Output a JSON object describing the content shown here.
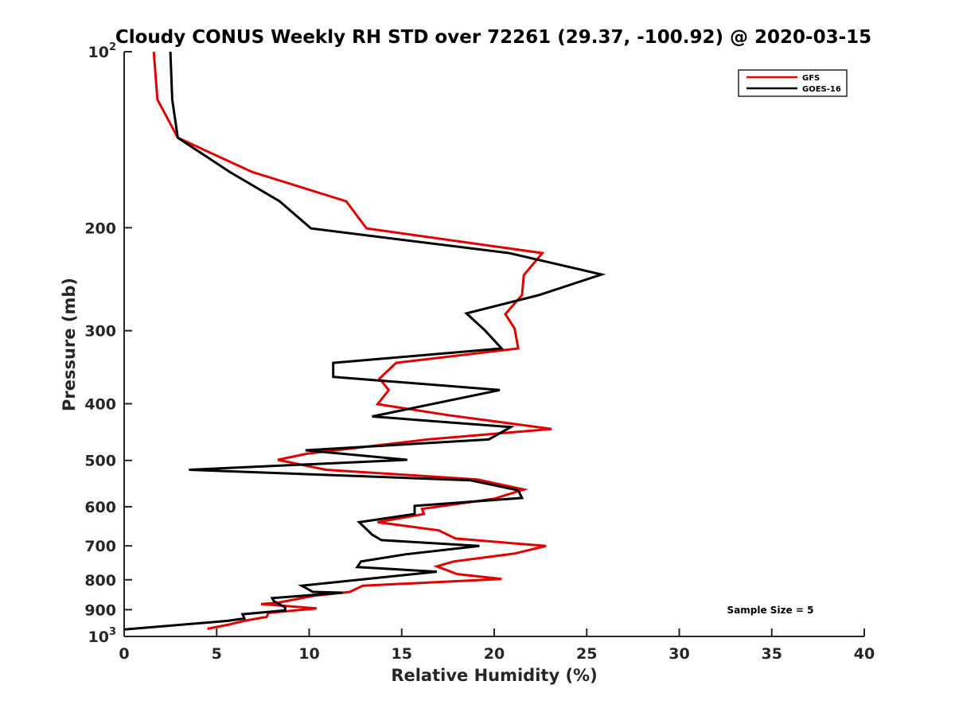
{
  "chart_data": {
    "type": "line",
    "title": "Cloudy CONUS Weekly RH STD over 72261 (29.37, -100.92) @ 2020-03-15",
    "xlabel": "Relative Humidity (%)",
    "ylabel": "Pressure (mb)",
    "xlim": [
      0,
      40
    ],
    "ylim": [
      100,
      1000
    ],
    "yscale": "log",
    "y_reversed": true,
    "grid": false,
    "x_ticks": [
      0,
      5,
      10,
      15,
      20,
      25,
      30,
      35,
      40
    ],
    "x_tick_labels": [
      "0",
      "5",
      "10",
      "15",
      "20",
      "25",
      "30",
      "35",
      "40"
    ],
    "y_ticks": [
      100,
      200,
      300,
      400,
      500,
      600,
      700,
      800,
      900,
      1000
    ],
    "y_tick_labels": [
      {
        "base": "10",
        "sup": "2"
      },
      {
        "base": "200",
        "sup": ""
      },
      {
        "base": "300",
        "sup": ""
      },
      {
        "base": "400",
        "sup": ""
      },
      {
        "base": "500",
        "sup": ""
      },
      {
        "base": "600",
        "sup": ""
      },
      {
        "base": "700",
        "sup": ""
      },
      {
        "base": "800",
        "sup": ""
      },
      {
        "base": "900",
        "sup": ""
      },
      {
        "base": "10",
        "sup": "3"
      }
    ],
    "legend": {
      "placement": "top-right",
      "entries": [
        {
          "name": "GFS",
          "color": "#e00000"
        },
        {
          "name": "GOES-16",
          "color": "#000000"
        }
      ]
    },
    "annotations": [
      {
        "text": "Sample Size = 5",
        "placement": "bottom-right"
      }
    ],
    "series": [
      {
        "name": "GFS",
        "color": "#e00000",
        "points": [
          [
            1.6,
            100
          ],
          [
            1.8,
            120.7
          ],
          [
            2.9,
            140.3
          ],
          [
            6.9,
            160.5
          ],
          [
            12.0,
            180.2
          ],
          [
            13.1,
            200.5
          ],
          [
            22.6,
            221.0
          ],
          [
            21.6,
            241.1
          ],
          [
            21.5,
            260.8
          ],
          [
            20.6,
            281.0
          ],
          [
            21.1,
            297.3
          ],
          [
            21.3,
            321.7
          ],
          [
            14.7,
            340.5
          ],
          [
            13.8,
            362.3
          ],
          [
            14.3,
            379.0
          ],
          [
            13.7,
            400.6
          ],
          [
            17.5,
            418.3
          ],
          [
            23.1,
            441.7
          ],
          [
            16.4,
            460.4
          ],
          [
            9.9,
            486.8
          ],
          [
            8.3,
            498.9
          ],
          [
            10.9,
            518.8
          ],
          [
            19.1,
            538.9
          ],
          [
            21.6,
            560.6
          ],
          [
            20.0,
            581.4
          ],
          [
            16.1,
            605.3
          ],
          [
            16.2,
            617.5
          ],
          [
            13.7,
            637.7
          ],
          [
            17.0,
            658.6
          ],
          [
            17.9,
            680.0
          ],
          [
            22.8,
            700.3
          ],
          [
            21.1,
            721.5
          ],
          [
            17.8,
            744.5
          ],
          [
            16.9,
            758.7
          ],
          [
            18.0,
            782.2
          ],
          [
            20.4,
            797.6
          ],
          [
            12.9,
            818.8
          ],
          [
            12.2,
            839.2
          ],
          [
            10.3,
            851.5
          ],
          [
            8.3,
            875.7
          ],
          [
            7.4,
            880.1
          ],
          [
            10.4,
            895.5
          ],
          [
            7.8,
            911.3
          ],
          [
            7.7,
            925.9
          ],
          [
            6.5,
            940.3
          ],
          [
            5.6,
            955.2
          ],
          [
            4.5,
            970.5
          ]
        ]
      },
      {
        "name": "GOES-16",
        "color": "#000000",
        "points": [
          [
            2.5,
            100
          ],
          [
            2.6,
            120.7
          ],
          [
            2.9,
            140.3
          ],
          [
            5.7,
            160.5
          ],
          [
            8.4,
            180.2
          ],
          [
            10.1,
            200.5
          ],
          [
            20.8,
            221.0
          ],
          [
            25.8,
            240.4
          ],
          [
            22.4,
            260.8
          ],
          [
            18.5,
            280.2
          ],
          [
            19.5,
            299.6
          ],
          [
            20.4,
            321.7
          ],
          [
            11.3,
            340.5
          ],
          [
            11.3,
            359.8
          ],
          [
            20.3,
            379.0
          ],
          [
            13.4,
            420.5
          ],
          [
            20.9,
            438.5
          ],
          [
            19.7,
            460.4
          ],
          [
            9.8,
            480.5
          ],
          [
            15.3,
            498.9
          ],
          [
            3.5,
            518.8
          ],
          [
            18.7,
            540.6
          ],
          [
            21.3,
            562.4
          ],
          [
            21.5,
            579.6
          ],
          [
            15.7,
            598.0
          ],
          [
            15.7,
            617.5
          ],
          [
            12.7,
            637.7
          ],
          [
            13.4,
            669.6
          ],
          [
            13.9,
            684.2
          ],
          [
            19.2,
            700.3
          ],
          [
            15.2,
            723.7
          ],
          [
            12.8,
            744.5
          ],
          [
            12.6,
            761.0
          ],
          [
            16.9,
            775.0
          ],
          [
            9.6,
            818.8
          ],
          [
            10.2,
            839.2
          ],
          [
            11.8,
            841.8
          ],
          [
            8.0,
            859.8
          ],
          [
            8.1,
            870.4
          ],
          [
            8.7,
            891.8
          ],
          [
            8.7,
            902.7
          ],
          [
            6.4,
            916.4
          ],
          [
            6.5,
            931.7
          ],
          [
            5.6,
            940.3
          ],
          [
            0.0,
            973.2
          ]
        ]
      }
    ]
  }
}
